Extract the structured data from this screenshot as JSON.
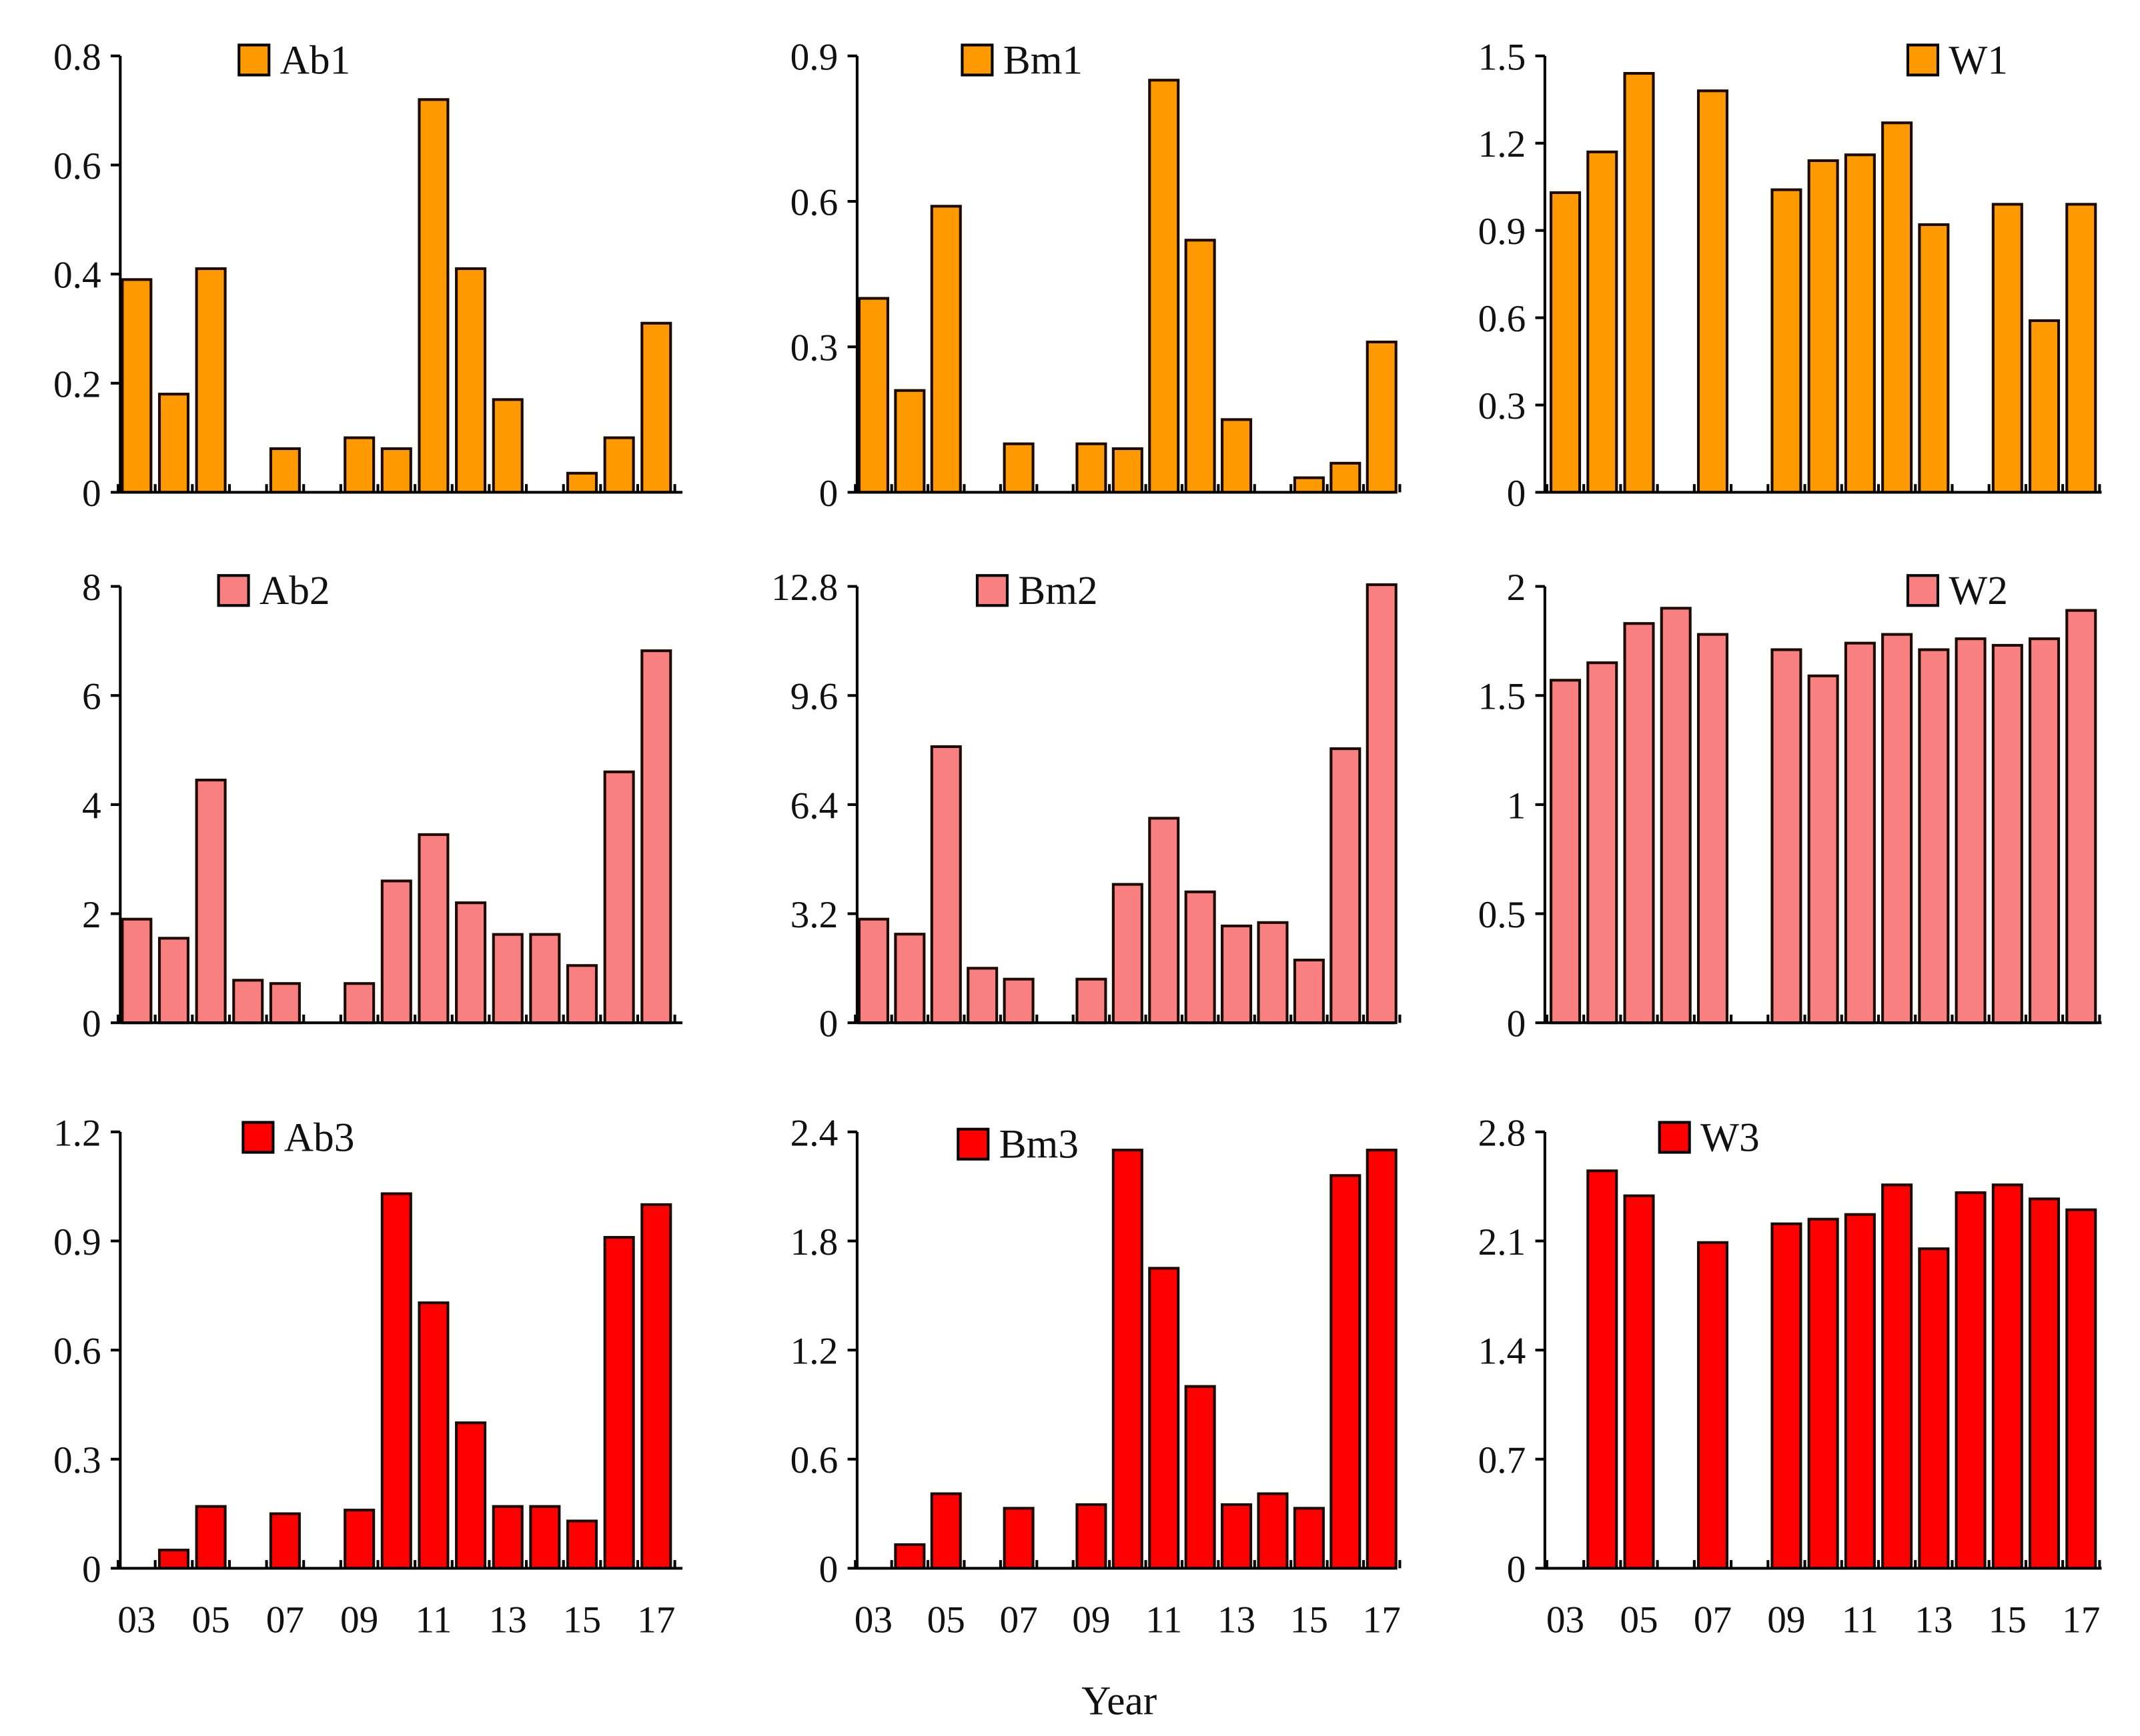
{
  "chart_data": [
    {
      "type": "bar",
      "legend": "Ab1",
      "color": "#FF9900",
      "ylim": [
        0,
        0.8
      ],
      "yticks": [
        "0",
        "0.2",
        "0.4",
        "0.6",
        "0.8"
      ],
      "categories": [
        "03",
        "04",
        "05",
        "06",
        "07",
        "08",
        "09",
        "10",
        "11",
        "12",
        "13",
        "14",
        "15",
        "16",
        "17"
      ],
      "values": [
        0.39,
        0.18,
        0.41,
        0,
        0.08,
        0,
        0.1,
        0.08,
        0.72,
        0.41,
        0.17,
        0,
        0.035,
        0.1,
        0.31
      ]
    },
    {
      "type": "bar",
      "legend": "Bm1",
      "color": "#FF9900",
      "ylim": [
        0,
        0.9
      ],
      "yticks": [
        "0",
        "0.3",
        "0.6",
        "0.9"
      ],
      "categories": [
        "03",
        "04",
        "05",
        "06",
        "07",
        "08",
        "09",
        "10",
        "11",
        "12",
        "13",
        "14",
        "15",
        "16",
        "17"
      ],
      "values": [
        0.4,
        0.21,
        0.59,
        0,
        0.1,
        0,
        0.1,
        0.09,
        0.85,
        0.52,
        0.15,
        0,
        0.03,
        0.06,
        0.31
      ]
    },
    {
      "type": "bar",
      "legend": "W1",
      "color": "#FF9900",
      "ylim": [
        0,
        1.5
      ],
      "yticks": [
        "0",
        "0.3",
        "0.6",
        "0.9",
        "1.2",
        "1.5"
      ],
      "categories": [
        "03",
        "04",
        "05",
        "06",
        "07",
        "08",
        "09",
        "10",
        "11",
        "12",
        "13",
        "14",
        "15",
        "16",
        "17"
      ],
      "values": [
        1.03,
        1.17,
        1.44,
        0,
        1.38,
        0,
        1.04,
        1.14,
        1.16,
        1.27,
        0.92,
        0,
        0.99,
        0.59,
        0.99
      ]
    },
    {
      "type": "bar",
      "legend": "Ab2",
      "color": "#F98080",
      "ylim": [
        0,
        8
      ],
      "yticks": [
        "0",
        "2",
        "4",
        "6",
        "8"
      ],
      "categories": [
        "03",
        "04",
        "05",
        "06",
        "07",
        "08",
        "09",
        "10",
        "11",
        "12",
        "13",
        "14",
        "15",
        "16",
        "17"
      ],
      "values": [
        1.9,
        1.55,
        4.45,
        0.78,
        0.72,
        0,
        0.72,
        2.6,
        3.45,
        2.2,
        1.62,
        1.62,
        1.05,
        4.6,
        6.82
      ]
    },
    {
      "type": "bar",
      "legend": "Bm2",
      "color": "#F98080",
      "ylim": [
        0,
        12.8
      ],
      "yticks": [
        "0",
        "3.2",
        "6.4",
        "9.6",
        "12.8"
      ],
      "categories": [
        "03",
        "04",
        "05",
        "06",
        "07",
        "08",
        "09",
        "10",
        "11",
        "12",
        "13",
        "14",
        "15",
        "16",
        "17"
      ],
      "values": [
        3.04,
        2.6,
        8.1,
        1.6,
        1.28,
        0,
        1.28,
        4.06,
        6.0,
        3.84,
        2.84,
        2.94,
        1.84,
        8.04,
        12.85
      ]
    },
    {
      "type": "bar",
      "legend": "W2",
      "color": "#F98080",
      "ylim": [
        0,
        2
      ],
      "yticks": [
        "0",
        "0.5",
        "1",
        "1.5",
        "2"
      ],
      "categories": [
        "03",
        "04",
        "05",
        "06",
        "07",
        "08",
        "09",
        "10",
        "11",
        "12",
        "13",
        "14",
        "15",
        "16",
        "17"
      ],
      "values": [
        1.57,
        1.65,
        1.83,
        1.9,
        1.78,
        0,
        1.71,
        1.59,
        1.74,
        1.78,
        1.71,
        1.76,
        1.73,
        1.76,
        1.89
      ]
    },
    {
      "type": "bar",
      "legend": "Ab3",
      "color": "#FF0000",
      "ylim": [
        0,
        1.2
      ],
      "yticks": [
        "0",
        "0.3",
        "0.6",
        "0.9",
        "1.2"
      ],
      "categories": [
        "03",
        "04",
        "05",
        "06",
        "07",
        "08",
        "09",
        "10",
        "11",
        "12",
        "13",
        "14",
        "15",
        "16",
        "17"
      ],
      "values": [
        0,
        0.05,
        0.17,
        0,
        0.15,
        0,
        0.16,
        1.03,
        0.73,
        0.4,
        0.17,
        0.17,
        0.13,
        0.91,
        1.0
      ]
    },
    {
      "type": "bar",
      "legend": "Bm3",
      "color": "#FF0000",
      "ylim": [
        0,
        2.4
      ],
      "yticks": [
        "0",
        "0.6",
        "1.2",
        "1.8",
        "2.4"
      ],
      "categories": [
        "03",
        "04",
        "05",
        "06",
        "07",
        "08",
        "09",
        "10",
        "11",
        "12",
        "13",
        "14",
        "15",
        "16",
        "17"
      ],
      "values": [
        0,
        0.13,
        0.41,
        0,
        0.33,
        0,
        0.35,
        2.3,
        1.65,
        1.0,
        0.35,
        0.41,
        0.33,
        2.16,
        2.3
      ]
    },
    {
      "type": "bar",
      "legend": "W3",
      "color": "#FF0000",
      "ylim": [
        0,
        2.8
      ],
      "yticks": [
        "0",
        "0.7",
        "1.4",
        "2.1",
        "2.8"
      ],
      "categories": [
        "03",
        "04",
        "05",
        "06",
        "07",
        "08",
        "09",
        "10",
        "11",
        "12",
        "13",
        "14",
        "15",
        "16",
        "17"
      ],
      "values": [
        0,
        2.55,
        2.39,
        0,
        2.09,
        0,
        2.21,
        2.24,
        2.27,
        2.46,
        2.05,
        2.41,
        2.46,
        2.37,
        2.3
      ]
    }
  ],
  "xtick_labels": [
    "03",
    "05",
    "07",
    "09",
    "11",
    "13",
    "15",
    "17"
  ],
  "xlabel": "Year"
}
